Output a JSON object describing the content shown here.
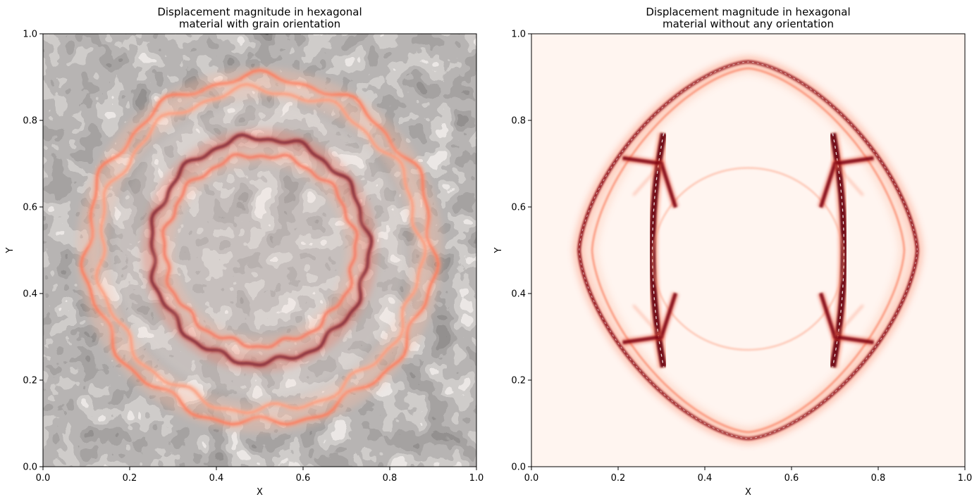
{
  "chart_data": [
    {
      "type": "heatmap",
      "title_lines": [
        "Displacement magnitude in hexagonal",
        "material with grain orientation"
      ],
      "xlabel": "X",
      "ylabel": "Y",
      "xlim": [
        0,
        1
      ],
      "ylim": [
        0,
        1
      ],
      "xticks": [
        "0.0",
        "0.2",
        "0.4",
        "0.6",
        "0.8",
        "1.0"
      ],
      "yticks": [
        "0.0",
        "0.2",
        "0.4",
        "0.6",
        "0.8",
        "1.0"
      ],
      "colormap": "Reds",
      "background": "grain-orientation map (greyscale)",
      "wavefronts": [
        {
          "shape": "ring",
          "center": [
            0.5,
            0.5
          ],
          "rx": 0.4,
          "ry": 0.4,
          "intensity": 0.45
        },
        {
          "shape": "ring",
          "center": [
            0.5,
            0.5
          ],
          "rx": 0.37,
          "ry": 0.37,
          "intensity": 0.35
        },
        {
          "shape": "ring",
          "center": [
            0.5,
            0.5
          ],
          "rx": 0.25,
          "ry": 0.26,
          "intensity": 1.0
        },
        {
          "shape": "ring",
          "center": [
            0.5,
            0.5
          ],
          "rx": 0.22,
          "ry": 0.22,
          "intensity": 0.55
        }
      ]
    },
    {
      "type": "heatmap",
      "title_lines": [
        "Displacement magnitude in hexagonal",
        "material without any orientation"
      ],
      "xlabel": "X",
      "ylabel": "Y",
      "xlim": [
        0,
        1
      ],
      "ylim": [
        0,
        1
      ],
      "xticks": [
        "0.0",
        "0.2",
        "0.4",
        "0.6",
        "0.8",
        "1.0"
      ],
      "yticks": [
        "0.0",
        "0.2",
        "0.4",
        "0.6",
        "0.8",
        "1.0"
      ],
      "colormap": "Reds",
      "background": "#fff5f0",
      "wavefronts": [
        {
          "shape": "rounded-diamond",
          "center": [
            0.5,
            0.5
          ],
          "rx": 0.39,
          "ry": 0.435,
          "intensity": 0.9
        },
        {
          "shape": "rounded-diamond",
          "center": [
            0.5,
            0.5
          ],
          "rx": 0.36,
          "ry": 0.42,
          "intensity": 0.4
        },
        {
          "shape": "lens",
          "center": [
            0.5,
            0.5
          ],
          "half_width": 0.235,
          "top_y": 0.77,
          "bottom_y": 0.23,
          "intensity": 1.0
        },
        {
          "shape": "faint-ellipse",
          "center": [
            0.5,
            0.48
          ],
          "rx": 0.22,
          "ry": 0.21,
          "intensity": 0.18
        }
      ],
      "cusps": [
        [
          0.3,
          0.7
        ],
        [
          0.7,
          0.7
        ],
        [
          0.3,
          0.3
        ],
        [
          0.7,
          0.3
        ]
      ]
    }
  ]
}
